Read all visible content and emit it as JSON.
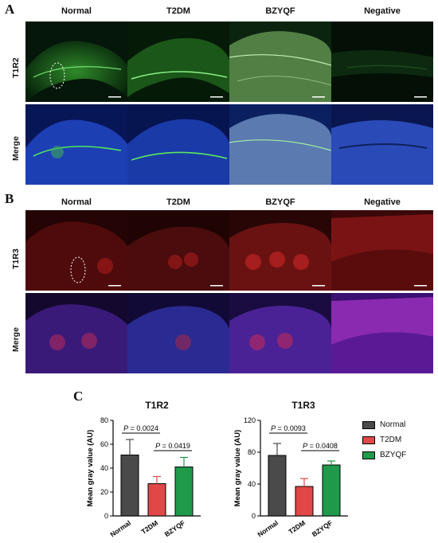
{
  "panel_a": {
    "letter": "A",
    "columns": [
      "Normal",
      "T2DM",
      "BZYQF",
      "Negative"
    ],
    "rows": [
      "T1R2",
      "Merge"
    ]
  },
  "panel_b": {
    "letter": "B",
    "columns": [
      "Normal",
      "T2DM",
      "BZYQF",
      "Negative"
    ],
    "rows": [
      "T1R3",
      "Merge"
    ]
  },
  "panel_c": {
    "letter": "C"
  },
  "chart_data": [
    {
      "type": "bar",
      "title": "T1R2",
      "ylabel": "Mean gray value (AU)",
      "categories": [
        "Normal",
        "T2DM",
        "BZYQF"
      ],
      "values": [
        51,
        27,
        41
      ],
      "errors": [
        13,
        6,
        8
      ],
      "ylim": [
        0,
        80
      ],
      "yticks": [
        "0",
        "20",
        "40",
        "60",
        "80"
      ],
      "annotations": [
        {
          "text_p": "P",
          "text_rest": " = 0.0024",
          "from": 0,
          "to": 1
        },
        {
          "text_p": "P",
          "text_rest": " = 0.0419",
          "from": 1,
          "to": 2
        }
      ]
    },
    {
      "type": "bar",
      "title": "T1R3",
      "ylabel": "Mean gray value (AU)",
      "categories": [
        "Normal",
        "T2DM",
        "BZYQF"
      ],
      "values": [
        76,
        37,
        64
      ],
      "errors": [
        15,
        10,
        5
      ],
      "ylim": [
        0,
        120
      ],
      "yticks": [
        "0",
        "40",
        "80",
        "120"
      ],
      "annotations": [
        {
          "text_p": "P",
          "text_rest": " = 0.0093",
          "from": 0,
          "to": 1
        },
        {
          "text_p": "P",
          "text_rest": " = 0.0408",
          "from": 1,
          "to": 2
        }
      ]
    }
  ],
  "legend": [
    {
      "label": "Normal",
      "color": "#4a4a4a"
    },
    {
      "label": "T2DM",
      "color": "#e04848"
    },
    {
      "label": "BZYQF",
      "color": "#1e9a4a"
    }
  ],
  "colors": {
    "t1r2_fluor": "#3fbf3f",
    "t1r3_fluor": "#d23232",
    "dapi": "#2a4ad8"
  }
}
